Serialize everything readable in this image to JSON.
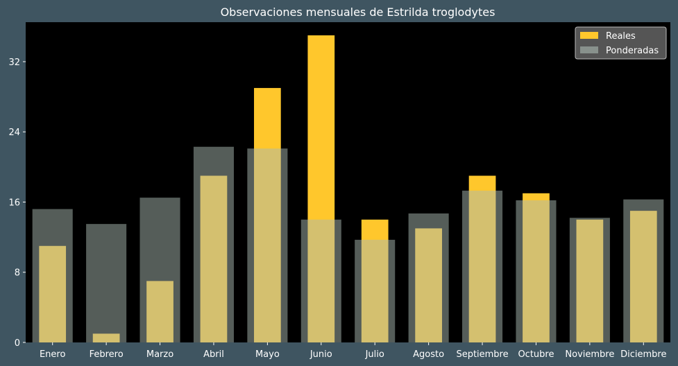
{
  "chart_data": {
    "type": "bar",
    "title": "Observaciones mensuales de Estrilda troglodytes",
    "xlabel": "",
    "ylabel": "",
    "categories": [
      "Enero",
      "Febrero",
      "Marzo",
      "Abril",
      "Mayo",
      "Junio",
      "Julio",
      "Agosto",
      "Septiembre",
      "Octubre",
      "Noviembre",
      "Diciembre"
    ],
    "series": [
      {
        "name": "Reales",
        "values": [
          11,
          1,
          7,
          19,
          29,
          35,
          14,
          13,
          19,
          17,
          14,
          15
        ],
        "color": "#ffc72c"
      },
      {
        "name": "Ponderadas",
        "values": [
          15.2,
          13.5,
          16.5,
          22.3,
          22.1,
          14.0,
          11.7,
          14.7,
          17.3,
          16.2,
          14.2,
          16.3
        ],
        "color": "#aab9b1"
      }
    ],
    "ylim": [
      0,
      36.5
    ],
    "yticks": [
      0,
      8,
      16,
      24,
      32
    ],
    "grid": false,
    "legend_position": "top-right",
    "colors": {
      "background": "#3f5561",
      "plot_background": "#000000",
      "text": "#ffffff",
      "legend_background": "#555555",
      "legend_border": "#bbbbbb"
    }
  }
}
